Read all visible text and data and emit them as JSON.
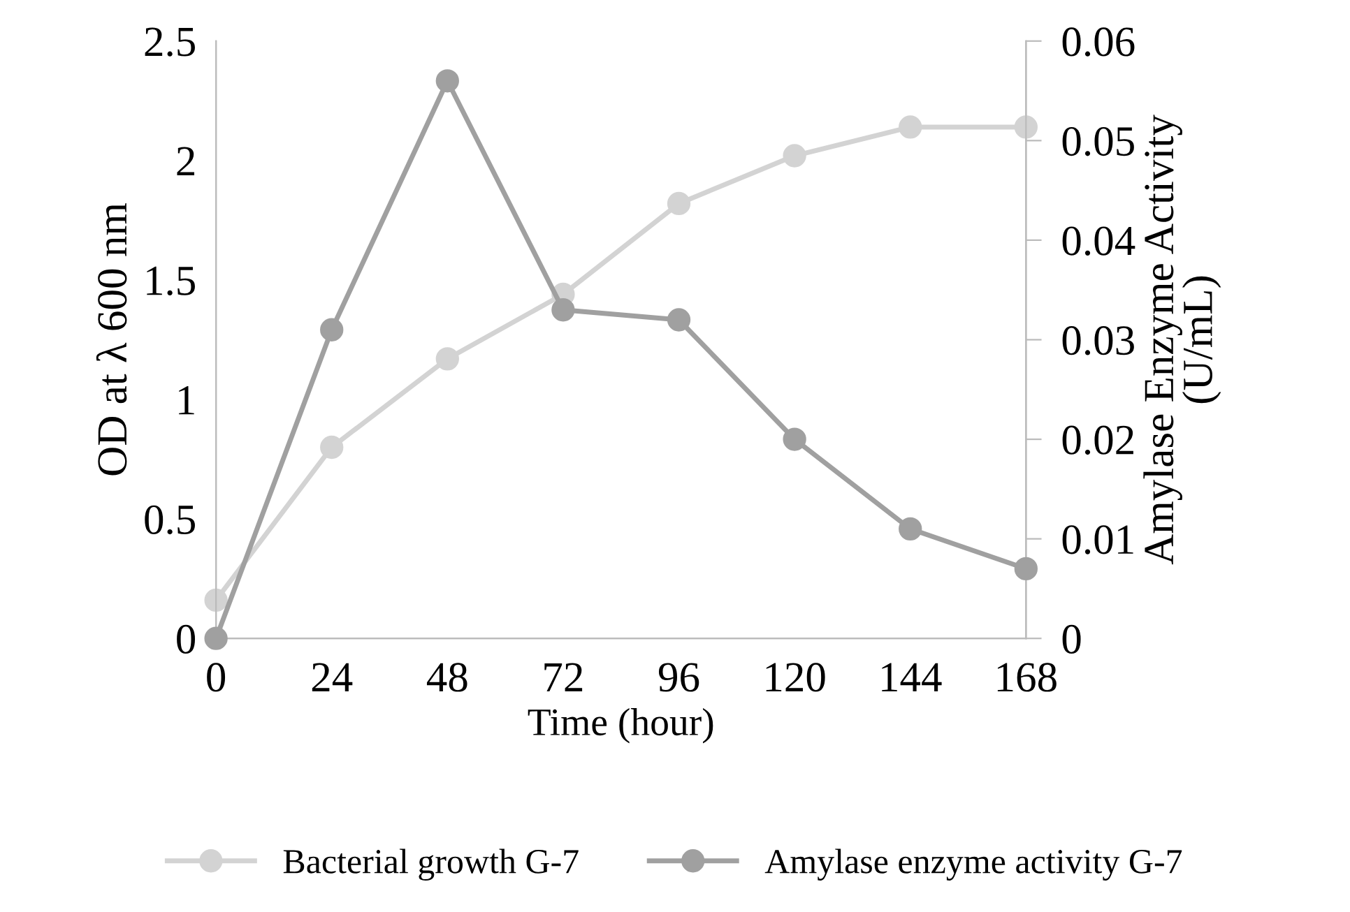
{
  "chart_data": {
    "type": "line",
    "xlabel": "Time (hour)",
    "ylabel": "OD at λ 600 nm",
    "y2label": "Amylase Enzyme Activity\n(U/mL)",
    "x": [
      0,
      24,
      48,
      72,
      96,
      120,
      144,
      168
    ],
    "xlim": [
      0,
      168
    ],
    "xticks": [
      0,
      24,
      48,
      72,
      96,
      120,
      144,
      168
    ],
    "ylim": [
      0,
      2.5
    ],
    "yticks": [
      0,
      0.5,
      1,
      1.5,
      2,
      2.5
    ],
    "y2lim": [
      0,
      0.06
    ],
    "y2ticks": [
      0,
      0.01,
      0.02,
      0.03,
      0.04,
      0.05,
      0.06
    ],
    "series": [
      {
        "name": "Bacterial growth G-7",
        "color": "#d3d3d3",
        "values": [
          0.16,
          0.8,
          1.17,
          1.44,
          1.82,
          2.02,
          2.14,
          2.14
        ]
      },
      {
        "name": "Amylase enzyme activity G-7",
        "color": "#a0a0a0",
        "axis": "y2",
        "values": [
          0,
          0.031,
          0.056,
          0.033,
          0.032,
          0.02,
          0.011,
          0.007
        ]
      }
    ],
    "marker": "circle",
    "line_style": "solid",
    "grid": false,
    "legend": "bottom"
  }
}
